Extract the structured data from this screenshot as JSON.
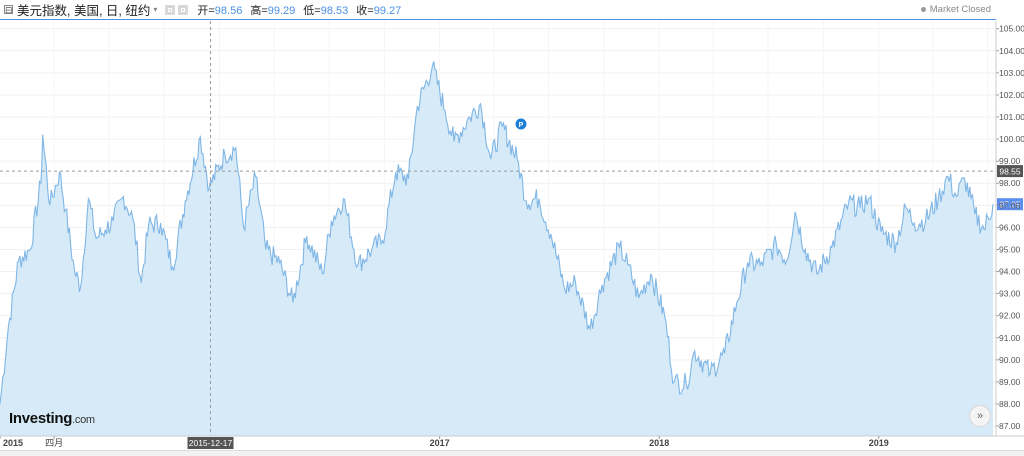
{
  "legend": {
    "collapse_symbol": "⊟",
    "symbol": "美元指数, 美国, 日, 纽约",
    "caret": "▾",
    "open_label": "开=",
    "open": "98.56",
    "high_label": "高=",
    "high": "99.29",
    "low_label": "低=",
    "low": "98.53",
    "close_label": "收=",
    "close": "99.27"
  },
  "market_status": "Market Closed",
  "logo": {
    "main": "Investing",
    "suffix": ".com"
  },
  "scroll_button_label": "»",
  "crosshair": {
    "date_label": "2015-12-17",
    "price_label": "98.55",
    "price": 98.55
  },
  "last_price": {
    "label": "97.05",
    "value": 97.05
  },
  "colors": {
    "line": "#7fb6e6",
    "fill": "#d6eaf7",
    "accent": "#4a90e2",
    "last_price_bg": "#5b8def",
    "crosshair_label_bg": "#555555"
  },
  "chart_data": {
    "type": "area",
    "title": "美元指数, 美国, 日, 纽约",
    "xlabel": "",
    "ylabel": "",
    "x_ticks": [
      "2015",
      "四月",
      "2017",
      "2018",
      "2019"
    ],
    "y_ticks": [
      "105.00",
      "104.00",
      "103.00",
      "102.00",
      "101.00",
      "100.00",
      "99.00",
      "98.00",
      "97.00",
      "96.00",
      "95.00",
      "94.00",
      "93.00",
      "92.00",
      "91.00",
      "90.00",
      "89.00",
      "88.00",
      "87.00"
    ],
    "ylim": [
      86.55,
      105.35
    ],
    "xlim": [
      "2015-01-01",
      "2019-07-15"
    ],
    "grid": true,
    "series": [
      {
        "values": [
          [
            "2015-01-01",
            88.0
          ],
          [
            "2015-01-15",
            91.5
          ],
          [
            "2015-02-01",
            94.5
          ],
          [
            "2015-02-20",
            95.0
          ],
          [
            "2015-03-10",
            98.0
          ],
          [
            "2015-03-13",
            100.2
          ],
          [
            "2015-03-25",
            97.0
          ],
          [
            "2015-04-10",
            98.5
          ],
          [
            "2015-04-20",
            96.8
          ],
          [
            "2015-05-05",
            94.0
          ],
          [
            "2015-05-15",
            93.3
          ],
          [
            "2015-05-28",
            97.3
          ],
          [
            "2015-06-10",
            95.5
          ],
          [
            "2015-06-25",
            95.9
          ],
          [
            "2015-07-08",
            96.3
          ],
          [
            "2015-07-25",
            97.4
          ],
          [
            "2015-08-10",
            96.4
          ],
          [
            "2015-08-24",
            93.5
          ],
          [
            "2015-09-05",
            96.1
          ],
          [
            "2015-09-25",
            96.2
          ],
          [
            "2015-10-15",
            94.2
          ],
          [
            "2015-11-05",
            97.2
          ],
          [
            "2015-11-30",
            100.1
          ],
          [
            "2015-12-15",
            97.8
          ],
          [
            "2016-01-10",
            99.3
          ],
          [
            "2016-01-28",
            99.6
          ],
          [
            "2016-02-10",
            96.0
          ],
          [
            "2016-03-01",
            98.3
          ],
          [
            "2016-03-18",
            95.0
          ],
          [
            "2016-04-10",
            94.4
          ],
          [
            "2016-05-02",
            92.6
          ],
          [
            "2016-05-25",
            95.6
          ],
          [
            "2016-06-20",
            93.9
          ],
          [
            "2016-07-05",
            96.3
          ],
          [
            "2016-07-25",
            97.3
          ],
          [
            "2016-08-18",
            94.3
          ],
          [
            "2016-09-10",
            95.0
          ],
          [
            "2016-09-28",
            95.4
          ],
          [
            "2016-10-20",
            98.5
          ],
          [
            "2016-11-10",
            98.2
          ],
          [
            "2016-11-25",
            101.5
          ],
          [
            "2016-12-20",
            103.3
          ],
          [
            "2017-01-10",
            101.3
          ],
          [
            "2017-01-25",
            99.9
          ],
          [
            "2017-02-20",
            101.0
          ],
          [
            "2017-03-10",
            101.6
          ],
          [
            "2017-03-27",
            99.1
          ],
          [
            "2017-04-15",
            100.6
          ],
          [
            "2017-05-10",
            99.1
          ],
          [
            "2017-05-25",
            97.2
          ],
          [
            "2017-06-15",
            97.3
          ],
          [
            "2017-07-05",
            95.7
          ],
          [
            "2017-07-28",
            93.2
          ],
          [
            "2017-08-15",
            93.5
          ],
          [
            "2017-09-08",
            91.4
          ],
          [
            "2017-09-28",
            93.4
          ],
          [
            "2017-10-27",
            95.1
          ],
          [
            "2017-11-10",
            94.3
          ],
          [
            "2017-11-28",
            92.8
          ],
          [
            "2017-12-18",
            93.9
          ],
          [
            "2018-01-10",
            92.0
          ],
          [
            "2018-01-26",
            89.0
          ],
          [
            "2018-02-15",
            88.9
          ],
          [
            "2018-03-01",
            90.4
          ],
          [
            "2018-03-27",
            89.4
          ],
          [
            "2018-04-20",
            90.3
          ],
          [
            "2018-05-10",
            92.6
          ],
          [
            "2018-05-28",
            94.4
          ],
          [
            "2018-06-18",
            94.3
          ],
          [
            "2018-07-15",
            95.2
          ],
          [
            "2018-08-01",
            94.5
          ],
          [
            "2018-08-15",
            96.7
          ],
          [
            "2018-09-01",
            95.0
          ],
          [
            "2018-09-20",
            93.9
          ],
          [
            "2018-10-15",
            95.1
          ],
          [
            "2018-11-12",
            97.1
          ],
          [
            "2018-12-01",
            96.9
          ],
          [
            "2018-12-15",
            97.3
          ],
          [
            "2019-01-05",
            95.8
          ],
          [
            "2019-01-30",
            95.3
          ],
          [
            "2019-02-15",
            96.9
          ],
          [
            "2019-03-01",
            96.2
          ],
          [
            "2019-03-20",
            96.3
          ],
          [
            "2019-04-10",
            97.3
          ],
          [
            "2019-04-26",
            98.3
          ],
          [
            "2019-05-10",
            97.4
          ],
          [
            "2019-05-24",
            98.2
          ],
          [
            "2019-06-10",
            96.6
          ],
          [
            "2019-06-25",
            95.9
          ],
          [
            "2019-07-10",
            97.05
          ]
        ]
      }
    ]
  }
}
